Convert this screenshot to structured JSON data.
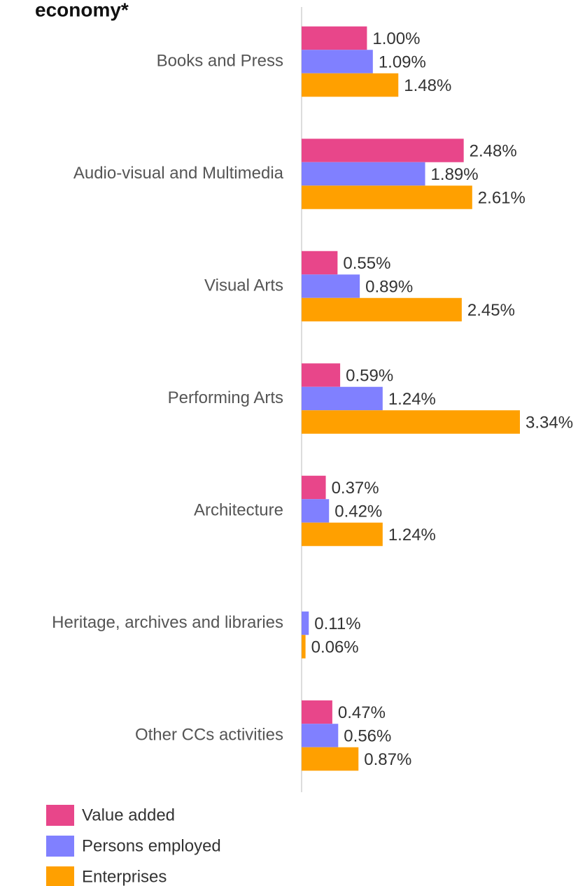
{
  "chart_data": {
    "type": "hbar",
    "title": "economy*",
    "categories": [
      "Books and Press",
      "Audio-visual and Multimedia",
      "Visual Arts",
      "Performing Arts",
      "Architecture",
      "Heritage, archives and libraries",
      "Other CCs activities"
    ],
    "series": [
      {
        "name": "Value added",
        "color": "#e8468a",
        "values": [
          1.0,
          2.48,
          0.55,
          0.59,
          0.37,
          null,
          0.47
        ],
        "value_labels": [
          "1.00%",
          "2.48%",
          "0.55%",
          "0.59%",
          "0.37%",
          null,
          "0.47%"
        ]
      },
      {
        "name": "Persons employed",
        "color": "#8080ff",
        "values": [
          1.09,
          1.89,
          0.89,
          1.24,
          0.42,
          0.11,
          0.56
        ],
        "value_labels": [
          "1.09%",
          "1.89%",
          "0.89%",
          "1.24%",
          "0.42%",
          "0.11%",
          "0.56%"
        ]
      },
      {
        "name": "Enterprises",
        "color": "#ffa000",
        "values": [
          1.48,
          2.61,
          2.45,
          3.34,
          1.24,
          0.06,
          0.87
        ],
        "value_labels": [
          "1.48%",
          "2.61%",
          "2.45%",
          "3.34%",
          "1.24%",
          "0.06%",
          "0.87%"
        ]
      }
    ],
    "legend": "bottom-left"
  }
}
